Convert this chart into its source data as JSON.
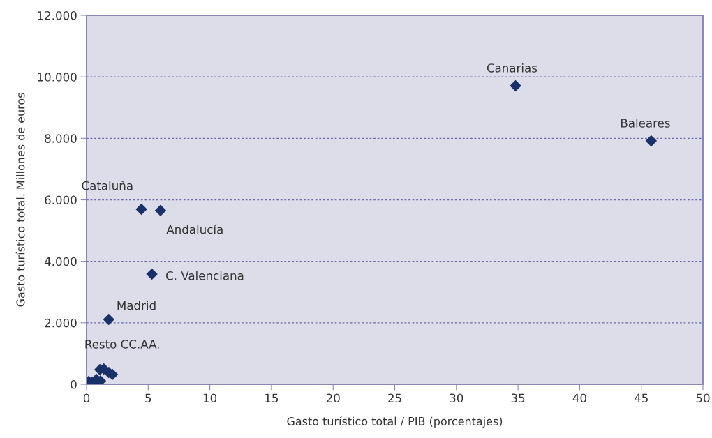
{
  "chart_data": {
    "type": "scatter",
    "xlabel": "Gasto turístico total / PIB (porcentajes)",
    "ylabel": "Gasto turístico total. Millones de euros",
    "x": [
      34.8,
      45.8,
      4.45,
      6.0,
      5.3,
      1.8,
      0.17,
      0.45,
      0.8,
      1.13,
      1.08,
      1.4,
      1.8,
      2.1
    ],
    "series": [
      {
        "color": "#1a3068",
        "values": [
          9710,
          7917,
          5694,
          5655,
          3584,
          2110,
          90,
          70,
          160,
          110,
          475,
          500,
          385,
          320
        ]
      }
    ],
    "marker": "diamond",
    "grid": "y",
    "xlim": [
      0,
      50
    ],
    "xticks": [
      0,
      5,
      10,
      15,
      20,
      25,
      30,
      35,
      40,
      45,
      50
    ],
    "ylim": [
      0,
      12000
    ],
    "yticks": [
      {
        "value": 0,
        "label": "0"
      },
      {
        "value": 2000,
        "label": "2.000"
      },
      {
        "value": 4000,
        "label": "4.000"
      },
      {
        "value": 6000,
        "label": "6.000"
      },
      {
        "value": 8000,
        "label": "8.000"
      },
      {
        "value": 10000,
        "label": "10.000"
      },
      {
        "value": 12000,
        "label": "12.000"
      }
    ],
    "annotations": [
      {
        "text": "Canarias",
        "x": 34.8,
        "y": 9710
      },
      {
        "text": "Baleares",
        "x": 45.8,
        "y": 7917
      },
      {
        "text": "Cataluña",
        "x": 4.45,
        "y": 5694
      },
      {
        "text": "Andalucía",
        "x": 6.0,
        "y": 5655
      },
      {
        "text": "C. Valenciana",
        "x": 5.3,
        "y": 3584
      },
      {
        "text": "Madrid",
        "x": 1.8,
        "y": 2110
      },
      {
        "text": "Resto CC.AA.",
        "x": 1.08,
        "y": 475
      }
    ]
  }
}
